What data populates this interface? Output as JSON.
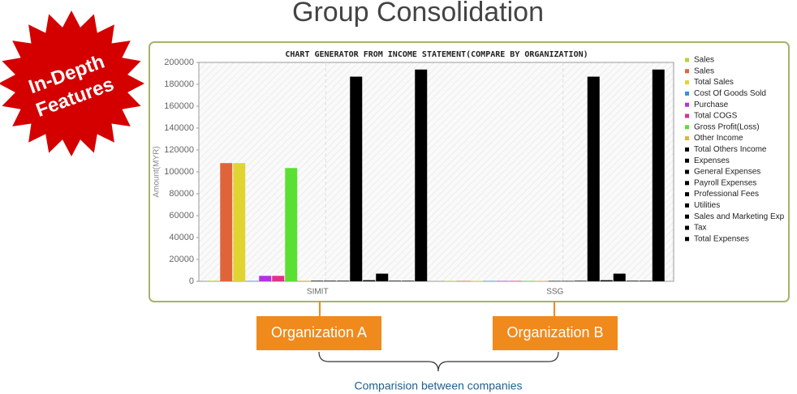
{
  "title": "Group Consolidation",
  "badge": [
    "In-Depth",
    "Features"
  ],
  "callouts": [
    "Organization A",
    "Organization B"
  ],
  "caption": "Comparision between companies",
  "chart_data": {
    "type": "bar",
    "title": "CHART GENERATOR FROM INCOME STATEMENT(COMPARE BY ORGANIZATION)",
    "y_label": "Amount(MYR)",
    "categories": [
      "SIMIT",
      "SSG"
    ],
    "ylim": [
      0,
      200000
    ],
    "yticks": [
      0,
      20000,
      40000,
      60000,
      80000,
      100000,
      120000,
      140000,
      160000,
      180000,
      200000
    ],
    "series": [
      {
        "name": "Sales",
        "color": "#b8d23a",
        "values": [
          500,
          300
        ]
      },
      {
        "name": "Sales",
        "color": "#e0643a",
        "values": [
          108000,
          300
        ]
      },
      {
        "name": "Total Sales",
        "color": "#e0d432",
        "values": [
          108000,
          300
        ]
      },
      {
        "name": "Cost Of Goods Sold",
        "color": "#3a8ee0",
        "values": [
          300,
          300
        ]
      },
      {
        "name": "Purchase",
        "color": "#b432e0",
        "values": [
          5000,
          300
        ]
      },
      {
        "name": "Total COGS",
        "color": "#e0328a",
        "values": [
          5000,
          300
        ]
      },
      {
        "name": "Gross Profit(Loss)",
        "color": "#5ae032",
        "values": [
          103500,
          300
        ]
      },
      {
        "name": "Other Income",
        "color": "#e0b43a",
        "values": [
          500,
          300
        ]
      },
      {
        "name": "Total Others Income",
        "color": "#000000",
        "values": [
          500,
          300
        ]
      },
      {
        "name": "Expenses",
        "color": "#000000",
        "values": [
          500,
          300
        ]
      },
      {
        "name": "General Expenses",
        "color": "#000000",
        "values": [
          500,
          500
        ]
      },
      {
        "name": "Payroll Expenses",
        "color": "#000000",
        "values": [
          187000,
          187000
        ]
      },
      {
        "name": "Professional Fees",
        "color": "#000000",
        "values": [
          1000,
          1000
        ]
      },
      {
        "name": "Utilities",
        "color": "#000000",
        "values": [
          7000,
          7000
        ]
      },
      {
        "name": "Sales and Marketing Exp",
        "color": "#000000",
        "values": [
          500,
          500
        ]
      },
      {
        "name": "Tax",
        "color": "#000000",
        "values": [
          500,
          500
        ]
      },
      {
        "name": "Total Expenses",
        "color": "#000000",
        "values": [
          193500,
          193500
        ]
      }
    ]
  }
}
